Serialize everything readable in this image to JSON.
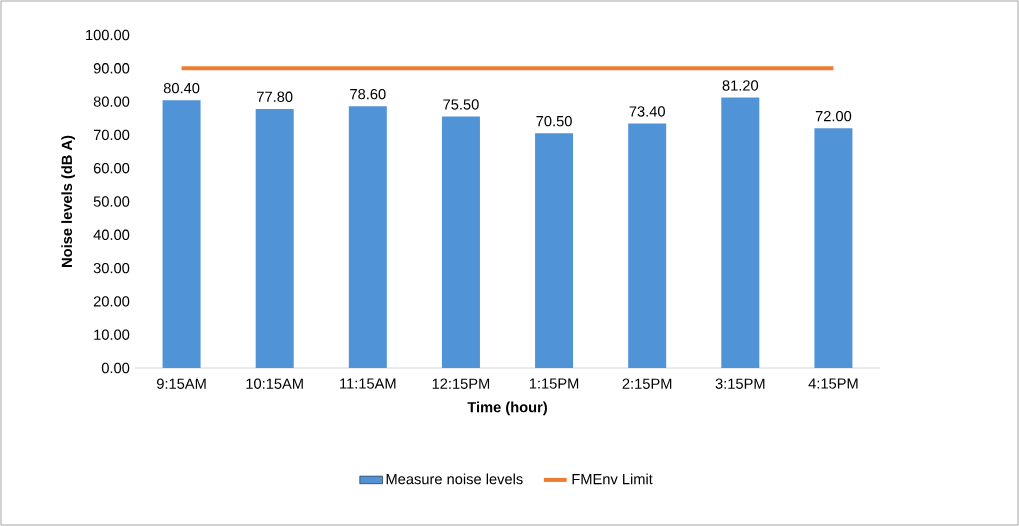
{
  "chart_data": {
    "type": "bar",
    "xlabel": "Time (hour)",
    "ylabel": "Noise levels (dB A)",
    "categories": [
      "9:15AM",
      "10:15AM",
      "11:15AM",
      "12:15PM",
      "1:15PM",
      "2:15PM",
      "3:15PM",
      "4:15PM"
    ],
    "series": [
      {
        "name": "Measure noise levels",
        "color": "#5093d6",
        "values": [
          80.4,
          77.8,
          78.6,
          75.5,
          70.5,
          73.4,
          81.2,
          72.0
        ],
        "value_labels": [
          "80.40",
          "77.80",
          "78.60",
          "75.50",
          "70.50",
          "73.40",
          "81.20",
          "72.00"
        ]
      },
      {
        "name": "FMEnv Limit",
        "type": "line",
        "color": "#ed7d31",
        "values": [
          90,
          90,
          90,
          90,
          90,
          90,
          90,
          90
        ]
      }
    ],
    "ylim": [
      0,
      100
    ],
    "yticks": [
      {
        "value": 0,
        "label": "0.00"
      },
      {
        "value": 10,
        "label": "10.00"
      },
      {
        "value": 20,
        "label": "20.00"
      },
      {
        "value": 30,
        "label": "30.00"
      },
      {
        "value": 40,
        "label": "40.00"
      },
      {
        "value": 50,
        "label": "50.00"
      },
      {
        "value": 60,
        "label": "60.00"
      },
      {
        "value": 70,
        "label": "70.00"
      },
      {
        "value": 80,
        "label": "80.00"
      },
      {
        "value": 90,
        "label": "90.00"
      },
      {
        "value": 100,
        "label": "100.00"
      }
    ],
    "legend": "bottom"
  }
}
